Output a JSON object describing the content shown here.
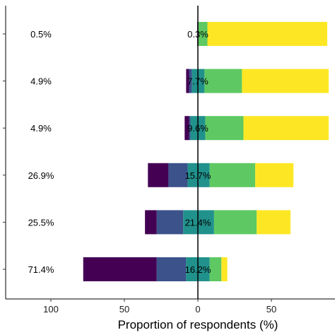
{
  "chart_data": {
    "type": "bar",
    "orientation": "horizontal",
    "stacked": "diverging",
    "title": "",
    "xlabel": "Proportion of respondents (%)",
    "ylabel": "",
    "xlim": [
      -128,
      95
    ],
    "xticks": [
      -100,
      -50,
      0,
      50
    ],
    "xtick_labels": [
      "100",
      "50",
      "0",
      "50"
    ],
    "grid": false,
    "legend": "none",
    "colors": [
      "#440154",
      "#3b528b",
      "#21918c",
      "#5ec962",
      "#fde725"
    ],
    "rows": [
      {
        "left_label": "0.5%",
        "mid_label": "0.3%",
        "segments": [
          [
            -0.5,
            0
          ],
          [
            0,
            0
          ],
          [
            0,
            0
          ],
          [
            0.3,
            6.5
          ],
          [
            6.5,
            88
          ]
        ]
      },
      {
        "left_label": "4.9%",
        "mid_label": "7.7%",
        "segments": [
          [
            -8,
            -6
          ],
          [
            -6,
            -4
          ],
          [
            -4,
            4.5
          ],
          [
            4.5,
            30
          ],
          [
            30,
            89
          ]
        ]
      },
      {
        "left_label": "4.9%",
        "mid_label": "9.6%",
        "segments": [
          [
            -9,
            -6
          ],
          [
            -6,
            -5
          ],
          [
            -5,
            5
          ],
          [
            5,
            31
          ],
          [
            31,
            89
          ]
        ]
      },
      {
        "left_label": "26.9%",
        "mid_label": "15.7%",
        "segments": [
          [
            -34,
            -20
          ],
          [
            -20,
            -7
          ],
          [
            -7,
            8
          ],
          [
            8,
            39
          ],
          [
            39,
            65
          ]
        ]
      },
      {
        "left_label": "25.5%",
        "mid_label": "21.4%",
        "segments": [
          [
            -36,
            -28
          ],
          [
            -28,
            -10
          ],
          [
            -10,
            11
          ],
          [
            11,
            40
          ],
          [
            40,
            63
          ]
        ]
      },
      {
        "left_label": "71.4%",
        "mid_label": "16.2%",
        "segments": [
          [
            -78,
            -28
          ],
          [
            -28,
            -8
          ],
          [
            -8,
            8
          ],
          [
            8,
            16
          ],
          [
            16,
            20
          ]
        ]
      }
    ]
  }
}
